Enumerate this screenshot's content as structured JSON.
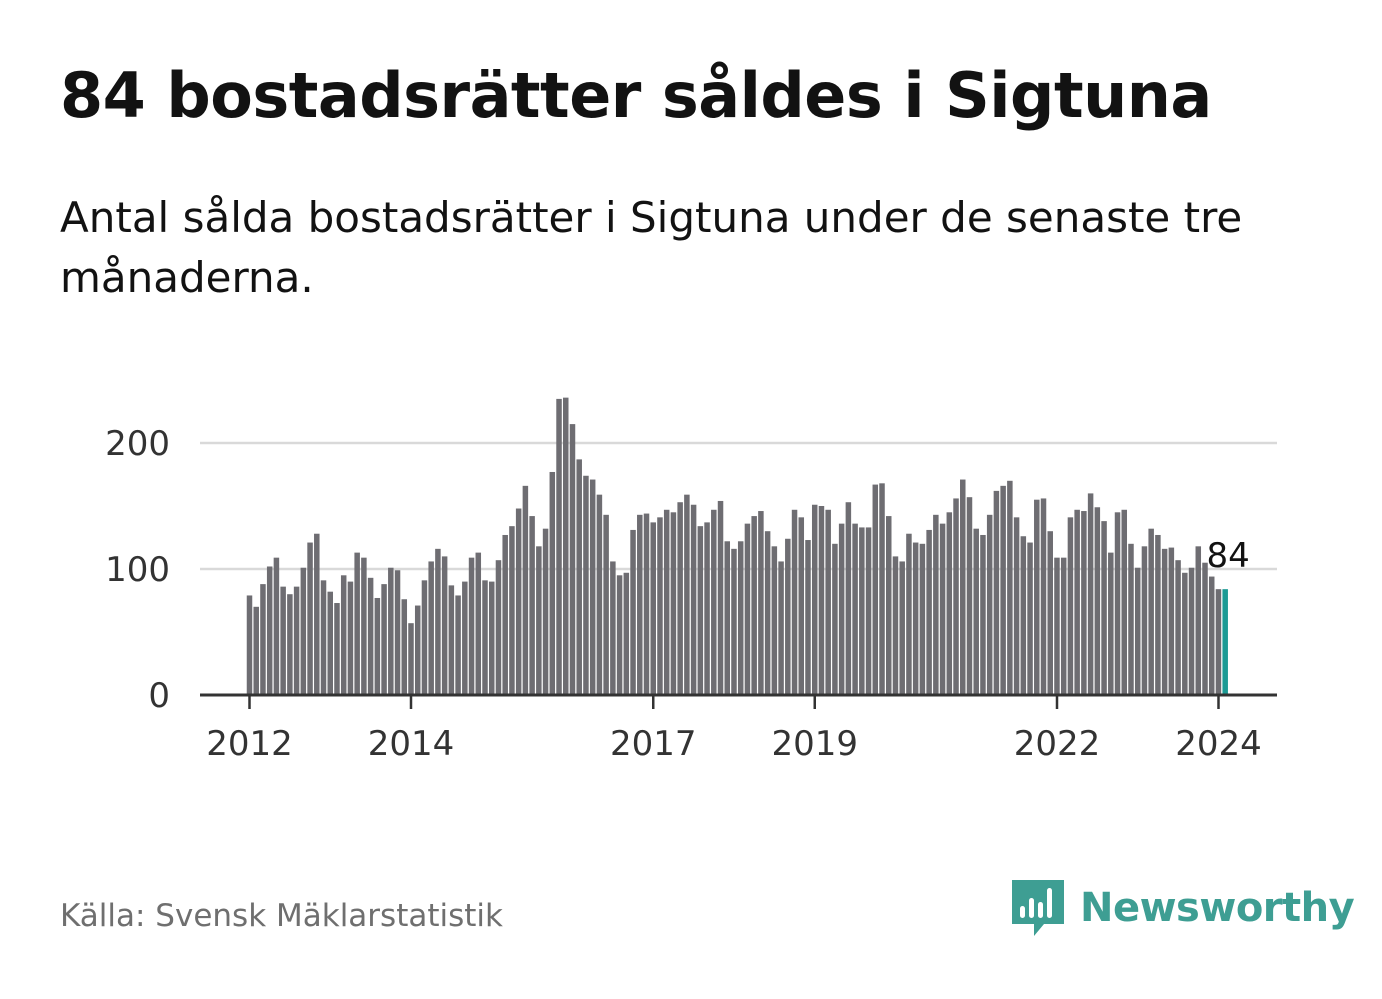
{
  "header": {
    "title": "84 bostadsrätter såldes i Sigtuna",
    "subtitle": "Antal sålda bostadsrätter i Sigtuna under de senaste tre månaderna."
  },
  "footer": {
    "source": "Källa: Svensk Mäklarstatistik",
    "brand": "Newsworthy",
    "brand_icon": "newsworthy-logo-icon"
  },
  "colors": {
    "bar": "#6e6d72",
    "highlight": "#1c9a94",
    "grid": "#d9d9d9",
    "axis": "#333333",
    "brand": "#3e9e93"
  },
  "chart_data": {
    "type": "bar",
    "title": "84 bostadsrätter såldes i Sigtuna",
    "xlabel": "",
    "ylabel": "",
    "ylim": [
      0,
      240
    ],
    "yticks": [
      0,
      100,
      200
    ],
    "grid": true,
    "x_start": 2012.0,
    "x_step": 0.08333,
    "xticks": [
      2012,
      2014,
      2017,
      2019,
      2022,
      2024
    ],
    "end_label": "84",
    "values": [
      79,
      70,
      88,
      102,
      109,
      86,
      80,
      86,
      101,
      121,
      128,
      91,
      82,
      73,
      95,
      90,
      113,
      109,
      93,
      77,
      88,
      101,
      99,
      76,
      57,
      71,
      91,
      106,
      116,
      110,
      87,
      79,
      90,
      109,
      113,
      91,
      90,
      107,
      127,
      134,
      148,
      166,
      142,
      118,
      132,
      177,
      235,
      236,
      215,
      187,
      174,
      171,
      159,
      143,
      106,
      95,
      97,
      131,
      143,
      144,
      137,
      141,
      147,
      145,
      153,
      159,
      151,
      134,
      137,
      147,
      154,
      122,
      116,
      122,
      136,
      142,
      146,
      130,
      118,
      106,
      124,
      147,
      141,
      123,
      151,
      150,
      147,
      120,
      136,
      153,
      136,
      133,
      133,
      167,
      168,
      142,
      110,
      106,
      128,
      121,
      120,
      131,
      143,
      136,
      145,
      156,
      171,
      157,
      132,
      127,
      143,
      162,
      166,
      170,
      141,
      126,
      121,
      155,
      156,
      130,
      109,
      109,
      141,
      147,
      146,
      160,
      149,
      138,
      113,
      145,
      147,
      120,
      101,
      118,
      132,
      127,
      116,
      117,
      107,
      97,
      101,
      118,
      105,
      94,
      84,
      84
    ]
  }
}
